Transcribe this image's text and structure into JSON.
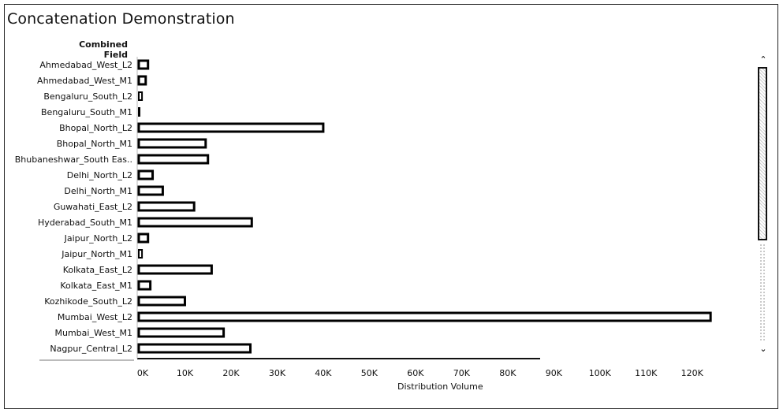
{
  "title": "Concatenation Demonstration",
  "row_header": "Combined Field",
  "chart_data": {
    "type": "bar",
    "orientation": "horizontal",
    "title": "Concatenation Demonstration",
    "xlabel": "Distribution Volume",
    "ylabel": "Combined Field",
    "categories": [
      "Ahmedabad_West_L2",
      "Ahmedabad_West_M1",
      "Bengaluru_South_L2",
      "Bengaluru_South_M1",
      "Bhopal_North_L2",
      "Bhopal_North_M1",
      "Bhubaneshwar_South Eas..",
      "Delhi_North_L2",
      "Delhi_North_M1",
      "Guwahati_East_L2",
      "Hyderabad_South_M1",
      "Jaipur_North_L2",
      "Jaipur_North_M1",
      "Kolkata_East_L2",
      "Kolkata_East_M1",
      "Kozhikode_South_L2",
      "Mumbai_West_L2",
      "Mumbai_West_M1",
      "Nagpur_Central_L2"
    ],
    "values": [
      2000,
      1500,
      700,
      100,
      40000,
      14500,
      15000,
      3000,
      5200,
      12000,
      24500,
      2000,
      700,
      15800,
      2500,
      10000,
      124000,
      18400,
      24200
    ],
    "xlim": [
      0,
      125000
    ],
    "xticks": [
      "0K",
      "10K",
      "20K",
      "30K",
      "40K",
      "50K",
      "60K",
      "70K",
      "80K",
      "90K",
      "100K",
      "110K",
      "120K"
    ],
    "grid": false,
    "legend": "none",
    "bar_fill": "#ffffff",
    "bar_outline": "#000000"
  }
}
